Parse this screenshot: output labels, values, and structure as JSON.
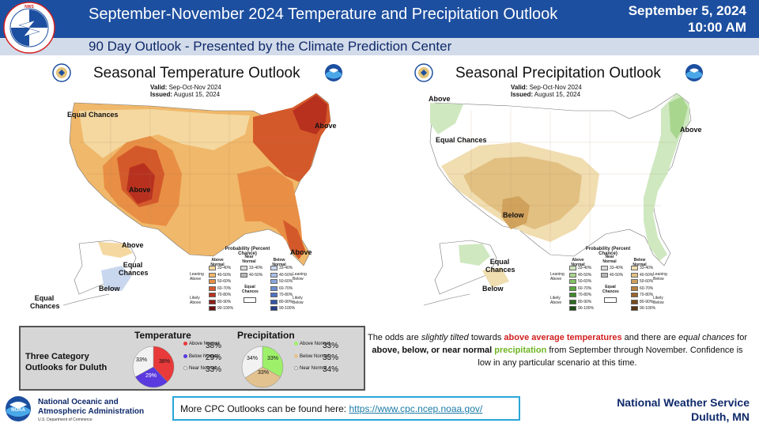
{
  "header": {
    "title": "September-November  2024 Temperature and Precipitation Outlook",
    "date": "September 5, 2024",
    "time": "10:00 AM",
    "subtitle": "90 Day Outlook - Presented by the Climate Prediction Center",
    "logo": "nws-logo"
  },
  "temperature_map": {
    "title": "Seasonal Temperature Outlook",
    "valid_label": "Valid:",
    "valid_value": "Sep-Oct-Nov 2024",
    "issued_label": "Issued:",
    "issued_value": "August 15, 2024",
    "labels": {
      "equal_chances_w": "Equal Chances",
      "above_ne": "Above",
      "above_w": "Above",
      "above_se": "Above",
      "above_ak": "Above",
      "equal_chances_ak": "Equal Chances",
      "below_ak": "Below",
      "equal_chances_ak2": "Equal Chances"
    },
    "legend": {
      "title": "Probability (Percent Chance)",
      "col1": "Above Normal",
      "col2": "Near Normal",
      "col3": "Below Normal",
      "rows": [
        "33-40%",
        "40-50%",
        "50-60%",
        "60-70%",
        "70-80%",
        "80-90%",
        "90-100%"
      ],
      "side_left_top": "Leaning Above",
      "side_left_bottom": "Likely Above",
      "side_right_top": "Leaning Below",
      "side_right_bottom": "Likely Below",
      "equal_chances": "Equal Chances",
      "colors_above": [
        "#f4d8a0",
        "#f0b86a",
        "#e88f45",
        "#d4592a",
        "#b8311f",
        "#8e1f16",
        "#6a1210"
      ],
      "colors_below": [
        "#c9d7ee",
        "#a9bfe5",
        "#8aa7dc",
        "#6a8ed1",
        "#4d72c2",
        "#3555a8",
        "#223d88"
      ],
      "colors_near": [
        "#d8d8d8",
        "#b8b8b8"
      ]
    }
  },
  "precipitation_map": {
    "title": "Seasonal Precipitation Outlook",
    "valid_label": "Valid:",
    "valid_value": "Sep-Oct-Nov 2024",
    "issued_label": "Issued:",
    "issued_value": "August 15, 2024",
    "labels": {
      "above_nw": "Above",
      "equal_chances_w": "Equal Chances",
      "above_e": "Above",
      "below_c": "Below",
      "equal_chances_ak": "Equal Chances",
      "below_ak": "Below"
    },
    "legend": {
      "title": "Probability (Percent Chance)",
      "col1": "Above Normal",
      "col2": "Near Normal",
      "col3": "Below Normal",
      "rows": [
        "33-40%",
        "40-50%",
        "50-60%",
        "60-70%",
        "70-80%",
        "80-90%",
        "90-100%"
      ],
      "side_left_top": "Leaning Above",
      "side_left_bottom": "Likely Above",
      "side_right_top": "Leaning Below",
      "side_right_bottom": "Likely Below",
      "equal_chances": "Equal Chances",
      "colors_above": [
        "#cfe8c0",
        "#a9d68e",
        "#82c263",
        "#5aa73e",
        "#3f8a2c",
        "#2b6b1f",
        "#1a4c14"
      ],
      "colors_below": [
        "#f0ddb0",
        "#e2c082",
        "#d1a25c",
        "#b9823f",
        "#9a642a",
        "#7a4a1c",
        "#5a3412"
      ],
      "colors_near": [
        "#d8d8d8",
        "#b8b8b8"
      ]
    }
  },
  "duluth": {
    "label_line1": "Three Category",
    "label_line2": "Outlooks for Duluth",
    "temperature": {
      "title": "Temperature",
      "above_pct": "38%",
      "below_pct": "29%",
      "near_pct": "33%",
      "slice_above": "38%",
      "slice_below": "29%",
      "slice_near": "33%",
      "key_above": "Above Normal",
      "key_below": "Below Normal",
      "key_near": "Near Normal",
      "color_above": "#e83a3a",
      "color_below": "#5a3adf",
      "color_near": "#f2f2f2"
    },
    "precipitation": {
      "title": "Precipitation",
      "above_pct": "33%",
      "below_pct": "33%",
      "near_pct": "34%",
      "slice_above": "33%",
      "slice_below": "33%",
      "slice_near": "34%",
      "key_above": "Above Normal",
      "key_below": "Below Normal",
      "key_near": "Near Normal",
      "color_above": "#9ef06a",
      "color_below": "#e2c28e",
      "color_near": "#f2f2f2"
    }
  },
  "statement": {
    "p1": "The odds are ",
    "p2": "slightly tilted",
    "p3": " towards ",
    "p4": "above average temperatures",
    "p5": " and there are ",
    "p6": "equal chances",
    "p7": " for ",
    "p8": "above, below, or near normal",
    "p9": " ",
    "p10": "precipitation",
    "p11": " from September through November.  Confidence  is low in any particular scenario at this time."
  },
  "footer": {
    "link_text": "More CPC Outlooks can be found here: ",
    "link_url": "https://www.cpc.ncep.noaa.gov/",
    "noaa_line1": "National Oceanic and",
    "noaa_line2": "Atmospheric Administration",
    "noaa_sub": "U.S. Department of Commerce",
    "nws_line1": "National Weather Service",
    "nws_line2": "Duluth, MN"
  }
}
